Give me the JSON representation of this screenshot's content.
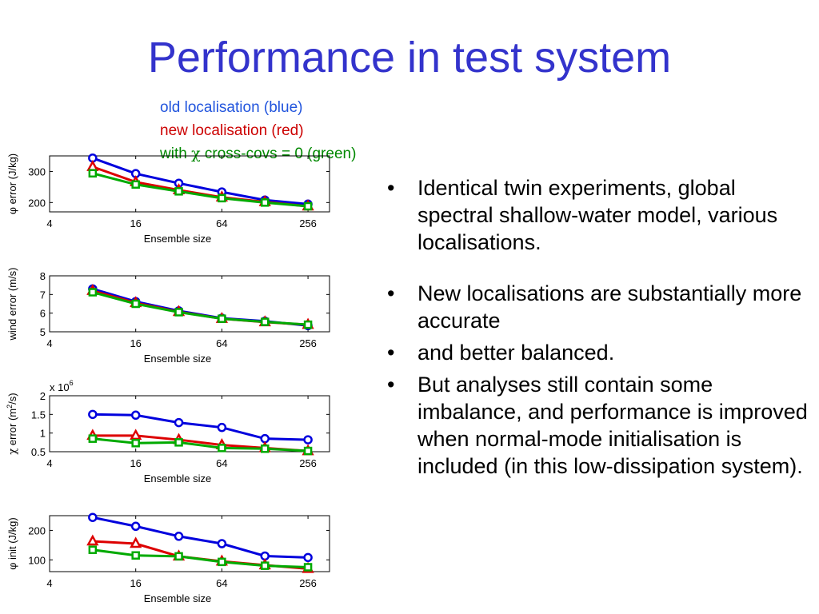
{
  "title": "Performance in test system",
  "legend": {
    "old": "old localisation (blue)",
    "new": "new localisation (red)",
    "green_prefix": "with ",
    "green_symbol": "χ",
    "green_suffix": " cross-covs = 0 (green)"
  },
  "colors": {
    "blue": "#0000dd",
    "red": "#dd0000",
    "green": "#00aa00",
    "title": "#3333cc"
  },
  "bullets": [
    "Identical twin experiments, global spectral shallow-water model, various localisations.",
    "New localisations are substantially more accurate",
    "and better balanced.",
    "But analyses still contain some imbalance, and performance is improved when normal-mode initialisation is included (in this low-dissipation system)."
  ],
  "chart_data": [
    {
      "type": "line",
      "ylabel_sym": "φ",
      "ylabel": " error (J/kg)",
      "xlabel": "Ensemble size",
      "xscale": "log2",
      "xlim": [
        4,
        362
      ],
      "xticks": [
        4,
        16,
        64,
        256
      ],
      "ylim": [
        170,
        350
      ],
      "yticks": [
        200,
        300
      ],
      "x": [
        8,
        16,
        32,
        64,
        128,
        256
      ],
      "series": [
        {
          "color": "blue",
          "marker": "circle",
          "values": [
            343,
            293,
            262,
            234,
            208,
            195
          ]
        },
        {
          "color": "red",
          "marker": "triangle",
          "values": [
            315,
            266,
            240,
            217,
            202,
            188
          ]
        },
        {
          "color": "green",
          "marker": "square",
          "values": [
            294,
            258,
            236,
            214,
            200,
            188
          ]
        }
      ]
    },
    {
      "type": "line",
      "ylabel": "wind error (m/s)",
      "xlabel": "Ensemble size",
      "xscale": "log2",
      "xlim": [
        4,
        362
      ],
      "xticks": [
        4,
        16,
        64,
        256
      ],
      "ylim": [
        5,
        8
      ],
      "yticks": [
        5,
        6,
        7,
        8
      ],
      "x": [
        8,
        16,
        32,
        64,
        128,
        256
      ],
      "series": [
        {
          "color": "blue",
          "marker": "circle",
          "values": [
            7.3,
            6.62,
            6.12,
            5.73,
            5.57,
            5.33
          ]
        },
        {
          "color": "red",
          "marker": "triangle",
          "values": [
            7.2,
            6.55,
            6.07,
            5.7,
            5.52,
            5.38
          ]
        },
        {
          "color": "green",
          "marker": "square",
          "values": [
            7.12,
            6.5,
            6.05,
            5.7,
            5.53,
            5.38
          ]
        }
      ]
    },
    {
      "type": "line",
      "ylabel_sym": "χ",
      "ylabel": " error (m",
      "ylabel_sup": "2",
      "ylabel_tail": "/s)",
      "xlabel": "Ensemble size",
      "xscale": "log2",
      "xlim": [
        4,
        362
      ],
      "xticks": [
        4,
        16,
        64,
        256
      ],
      "ylim": [
        0.5,
        2
      ],
      "yticks": [
        0.5,
        1,
        1.5,
        2
      ],
      "exponent_base": "x 10",
      "exponent": "6",
      "x": [
        8,
        16,
        32,
        64,
        128,
        256
      ],
      "series": [
        {
          "color": "blue",
          "marker": "circle",
          "values": [
            1.5,
            1.48,
            1.28,
            1.15,
            0.85,
            0.82
          ]
        },
        {
          "color": "red",
          "marker": "triangle",
          "values": [
            0.93,
            0.93,
            0.82,
            0.68,
            0.6,
            0.52
          ]
        },
        {
          "color": "green",
          "marker": "square",
          "values": [
            0.85,
            0.73,
            0.75,
            0.6,
            0.58,
            0.52
          ]
        }
      ]
    },
    {
      "type": "line",
      "ylabel_sym": "φ",
      "ylabel": " init (J/kg)",
      "xlabel": "Ensemble size",
      "xscale": "log2",
      "xlim": [
        4,
        362
      ],
      "xticks": [
        4,
        16,
        64,
        256
      ],
      "ylim": [
        60,
        250
      ],
      "yticks": [
        100,
        200
      ],
      "x": [
        8,
        16,
        32,
        64,
        128,
        256
      ],
      "series": [
        {
          "color": "blue",
          "marker": "circle",
          "values": [
            244,
            214,
            180,
            155,
            113,
            108
          ]
        },
        {
          "color": "red",
          "marker": "triangle",
          "values": [
            163,
            155,
            112,
            95,
            82,
            70
          ]
        },
        {
          "color": "green",
          "marker": "square",
          "values": [
            134,
            115,
            112,
            93,
            80,
            75
          ]
        }
      ]
    }
  ]
}
